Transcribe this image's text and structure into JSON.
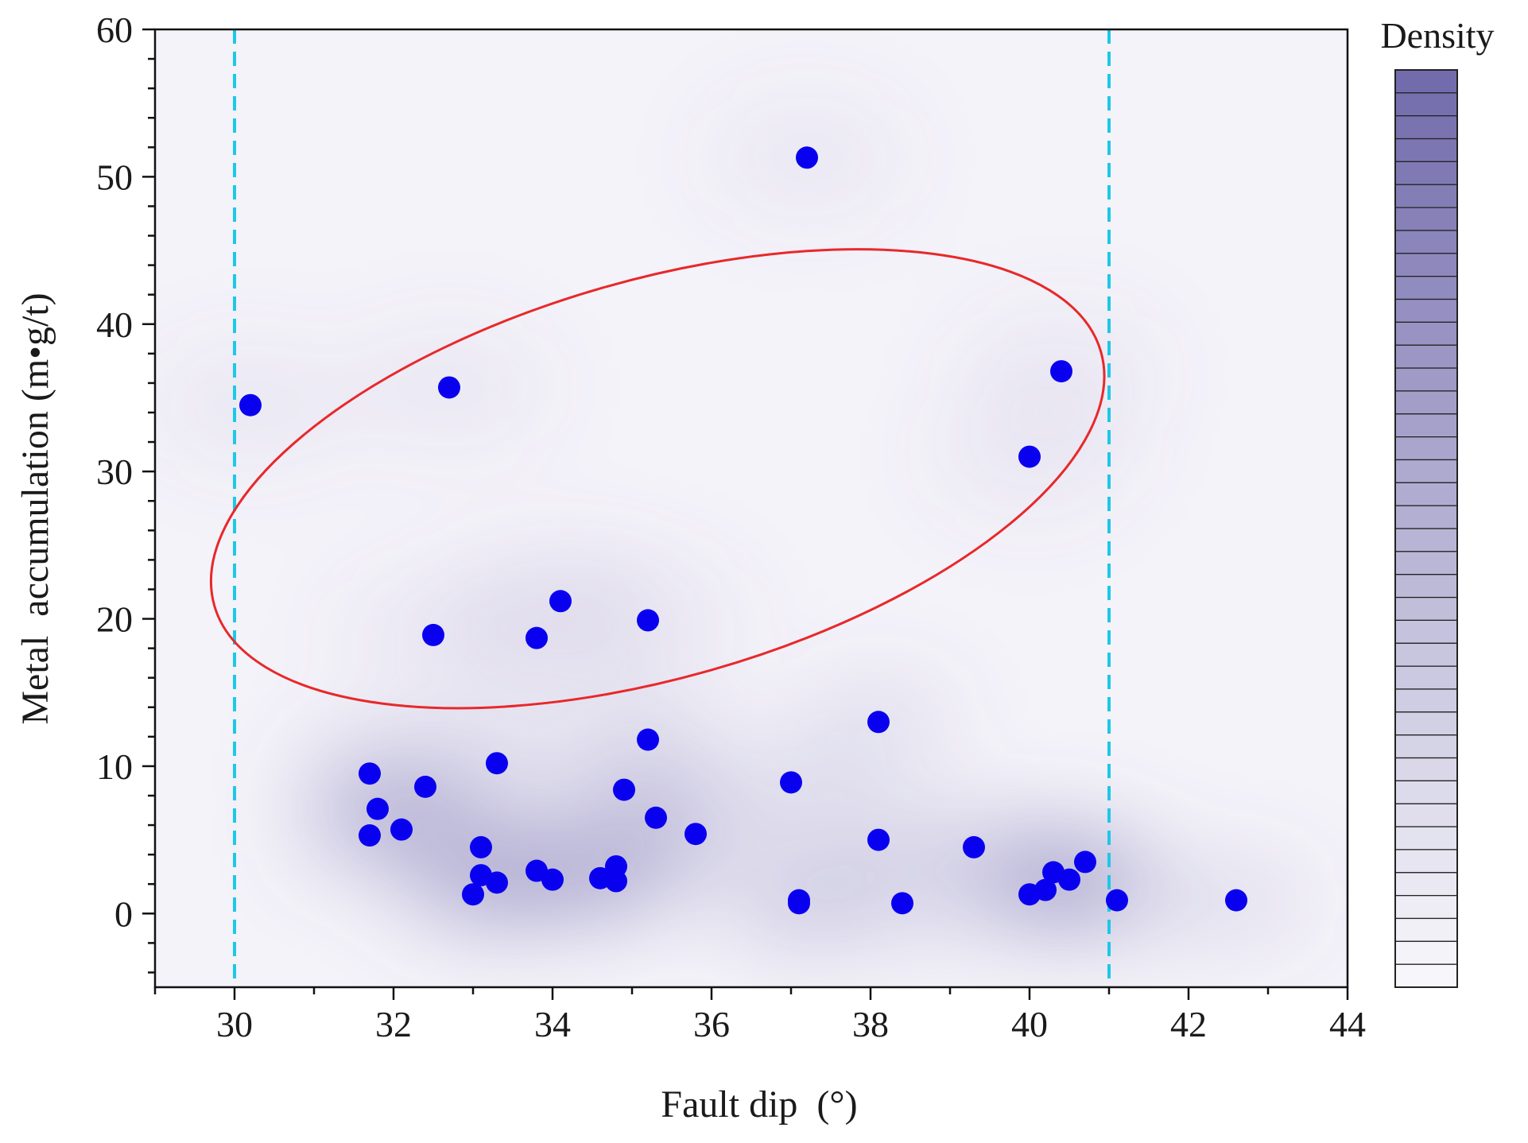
{
  "chart_data": {
    "type": "scatter",
    "title": "",
    "xlabel": "Fault dip  (°)",
    "ylabel": "Metal  accumulation (m•g/t)",
    "xlim": [
      29,
      44
    ],
    "ylim": [
      -5,
      60
    ],
    "x_ticks": [
      30,
      32,
      34,
      36,
      38,
      40,
      42,
      44
    ],
    "y_ticks": [
      0,
      10,
      20,
      30,
      40,
      50,
      60
    ],
    "grid": false,
    "background_color": "#f4f3f9",
    "point_color": "#0a00f0",
    "density_color": "#6b64a8",
    "colorbar": {
      "label": "Density",
      "levels": 40,
      "position": "right"
    },
    "reference_lines": [
      {
        "x": 30,
        "style": "dashed",
        "color": "#1ec8e6"
      },
      {
        "x": 41,
        "style": "dashed",
        "color": "#1ec8e6"
      }
    ],
    "highlight_ellipse": {
      "color": "#e8282a",
      "encloses": "points with metal accumulation above ~17"
    },
    "points": [
      {
        "x": 30.2,
        "y": 34.5
      },
      {
        "x": 32.7,
        "y": 35.7
      },
      {
        "x": 37.2,
        "y": 51.3
      },
      {
        "x": 40.4,
        "y": 36.8
      },
      {
        "x": 40.0,
        "y": 31.0
      },
      {
        "x": 32.5,
        "y": 18.9
      },
      {
        "x": 33.8,
        "y": 18.7
      },
      {
        "x": 34.1,
        "y": 21.2
      },
      {
        "x": 35.2,
        "y": 19.9
      },
      {
        "x": 31.7,
        "y": 9.5
      },
      {
        "x": 31.8,
        "y": 7.1
      },
      {
        "x": 31.7,
        "y": 5.3
      },
      {
        "x": 32.1,
        "y": 5.7
      },
      {
        "x": 32.4,
        "y": 8.6
      },
      {
        "x": 33.3,
        "y": 10.2
      },
      {
        "x": 33.1,
        "y": 4.5
      },
      {
        "x": 33.1,
        "y": 2.6
      },
      {
        "x": 33.3,
        "y": 2.1
      },
      {
        "x": 33.0,
        "y": 1.3
      },
      {
        "x": 33.8,
        "y": 2.9
      },
      {
        "x": 34.0,
        "y": 2.3
      },
      {
        "x": 34.6,
        "y": 2.4
      },
      {
        "x": 34.8,
        "y": 3.2
      },
      {
        "x": 34.8,
        "y": 2.2
      },
      {
        "x": 34.9,
        "y": 8.4
      },
      {
        "x": 35.2,
        "y": 11.8
      },
      {
        "x": 35.3,
        "y": 6.5
      },
      {
        "x": 35.8,
        "y": 5.4
      },
      {
        "x": 37.0,
        "y": 8.9
      },
      {
        "x": 37.1,
        "y": 0.9
      },
      {
        "x": 37.1,
        "y": 0.7
      },
      {
        "x": 38.1,
        "y": 13.0
      },
      {
        "x": 38.1,
        "y": 5.0
      },
      {
        "x": 38.4,
        "y": 0.7
      },
      {
        "x": 39.3,
        "y": 4.5
      },
      {
        "x": 40.0,
        "y": 1.3
      },
      {
        "x": 40.2,
        "y": 1.6
      },
      {
        "x": 40.3,
        "y": 2.8
      },
      {
        "x": 40.5,
        "y": 2.3
      },
      {
        "x": 40.7,
        "y": 3.5
      },
      {
        "x": 41.1,
        "y": 0.9
      },
      {
        "x": 42.6,
        "y": 0.9
      }
    ]
  }
}
